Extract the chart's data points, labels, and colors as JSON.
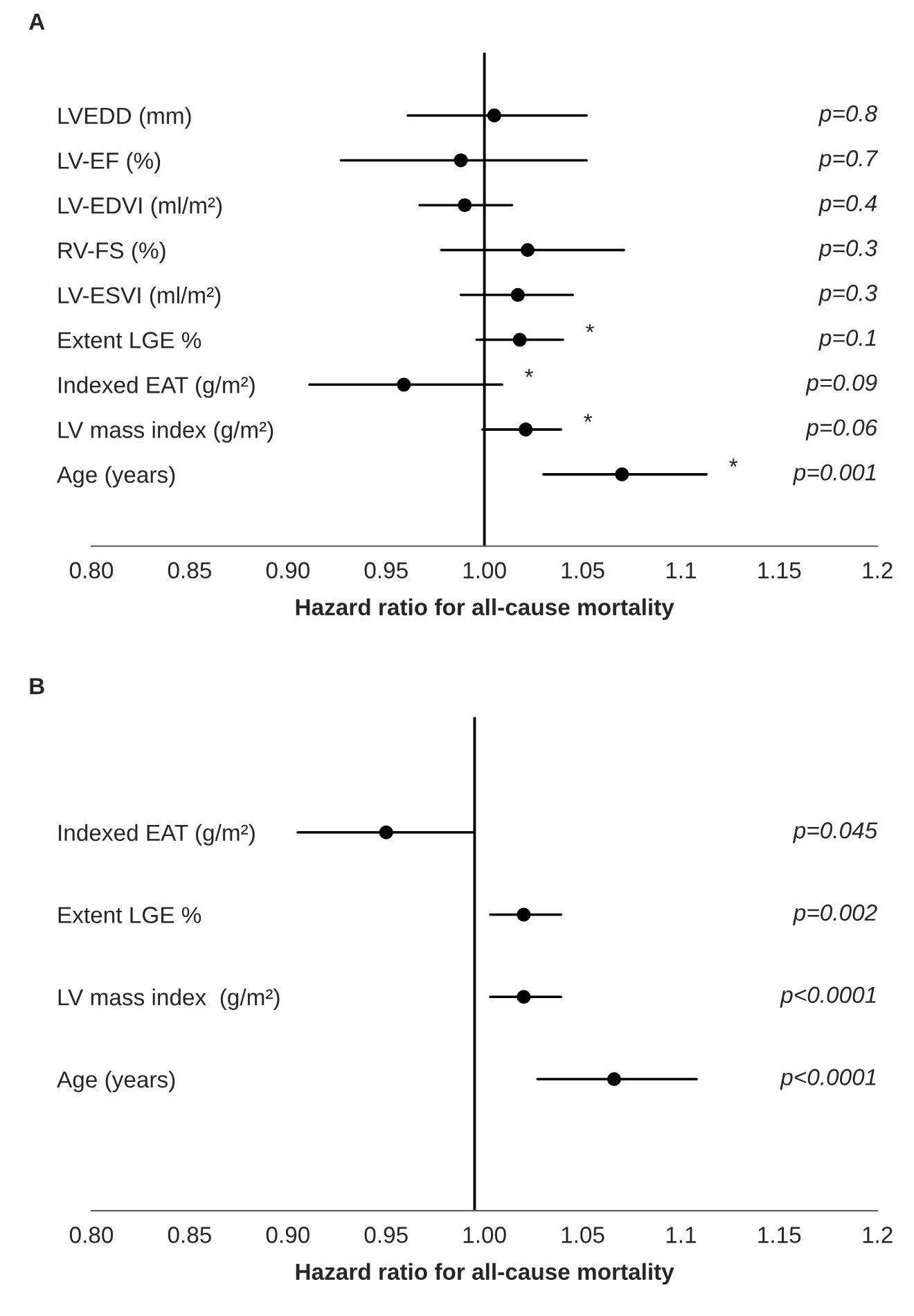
{
  "chart_data": [
    {
      "type": "scatter",
      "title": "A",
      "orientation": "horizontal",
      "xlabel": "Hazard ratio for all-cause mortality",
      "categories": [
        "LVEDD (mm)",
        "LV-EF (%)",
        "LV-EDVI (ml/m²)",
        "RV-FS (%)",
        "LV-ESVI (ml/m²)",
        "Extent LGE %",
        "Indexed EAT (g/m²)",
        "LV mass index (g/m²)",
        "Age (years)"
      ],
      "series": [
        {
          "color": "#000000",
          "values": [
            1.005,
            0.988,
            0.99,
            1.022,
            1.017,
            1.018,
            0.959,
            1.021,
            1.07
          ],
          "errors": [
            [
              0.961,
              1.052
            ],
            [
              0.927,
              1.052
            ],
            [
              0.967,
              1.014
            ],
            [
              0.978,
              1.071
            ],
            [
              0.988,
              1.045
            ],
            [
              0.996,
              1.04
            ],
            [
              0.911,
              1.009
            ],
            [
              0.999,
              1.039
            ],
            [
              1.03,
              1.113
            ]
          ]
        }
      ],
      "xlim": [
        0.8,
        1.2
      ],
      "xticks": [
        {
          "value": 0.8,
          "label": "0.80"
        },
        {
          "value": 0.85,
          "label": "0.85"
        },
        {
          "value": 0.9,
          "label": "0.90"
        },
        {
          "value": 0.95,
          "label": "0.95"
        },
        {
          "value": 1.0,
          "label": "1.00"
        },
        {
          "value": 1.05,
          "label": "1.05"
        },
        {
          "value": 1.1,
          "label": "1.1"
        },
        {
          "value": 1.15,
          "label": "1.15"
        },
        {
          "value": 1.2,
          "label": "1.2"
        }
      ],
      "ref_lines": [
        {
          "axis": "x",
          "value": 1.0,
          "color": "#000000"
        }
      ],
      "annotations": [
        {
          "text": "*",
          "x": 1.04,
          "y": "Extent LGE %"
        },
        {
          "text": "*",
          "x": 1.009,
          "y": "Indexed EAT (g/m²)"
        },
        {
          "text": "*",
          "x": 1.039,
          "y": "LV mass index (g/m²)"
        },
        {
          "text": "*",
          "x": 1.113,
          "y": "Age (years)"
        },
        "p=0.8",
        "p=0.7",
        "p=0.4",
        "p=0.3",
        "p=0.3",
        "p=0.1",
        "p=0.09",
        "p=0.06",
        "p=0.001"
      ],
      "marker": "circle",
      "grid": false,
      "legend": false
    },
    {
      "type": "scatter",
      "title": "B",
      "orientation": "horizontal",
      "xlabel": "Hazard ratio for all-cause mortality",
      "categories": [
        "Indexed EAT (g/m²)",
        "Extent LGE %",
        "LV mass index  (g/m²)",
        "Age (years)"
      ],
      "series": [
        {
          "color": "#000000",
          "values": [
            0.95,
            1.02,
            1.02,
            1.066
          ],
          "errors": [
            [
              0.905,
              0.995
            ],
            [
              1.003,
              1.039
            ],
            [
              1.003,
              1.039
            ],
            [
              1.027,
              1.108
            ]
          ]
        }
      ],
      "annotations": [
        "p=0.045",
        "p=0.002",
        "p<0.0001",
        "p<0.0001"
      ],
      "xlim": [
        0.8,
        1.2
      ],
      "xticks": [
        {
          "value": 0.8,
          "label": "0.80"
        },
        {
          "value": 0.85,
          "label": "0.85"
        },
        {
          "value": 0.9,
          "label": "0.90"
        },
        {
          "value": 0.95,
          "label": "0.95"
        },
        {
          "value": 1.0,
          "label": "1.00"
        },
        {
          "value": 1.05,
          "label": "1.05"
        },
        {
          "value": 1.1,
          "label": "1.1"
        },
        {
          "value": 1.15,
          "label": "1.15"
        },
        {
          "value": 1.2,
          "label": "1.2"
        }
      ],
      "ref_lines": [
        {
          "axis": "x",
          "value": 0.995,
          "color": "#000000"
        }
      ],
      "marker": "circle",
      "grid": false,
      "legend": false
    }
  ]
}
